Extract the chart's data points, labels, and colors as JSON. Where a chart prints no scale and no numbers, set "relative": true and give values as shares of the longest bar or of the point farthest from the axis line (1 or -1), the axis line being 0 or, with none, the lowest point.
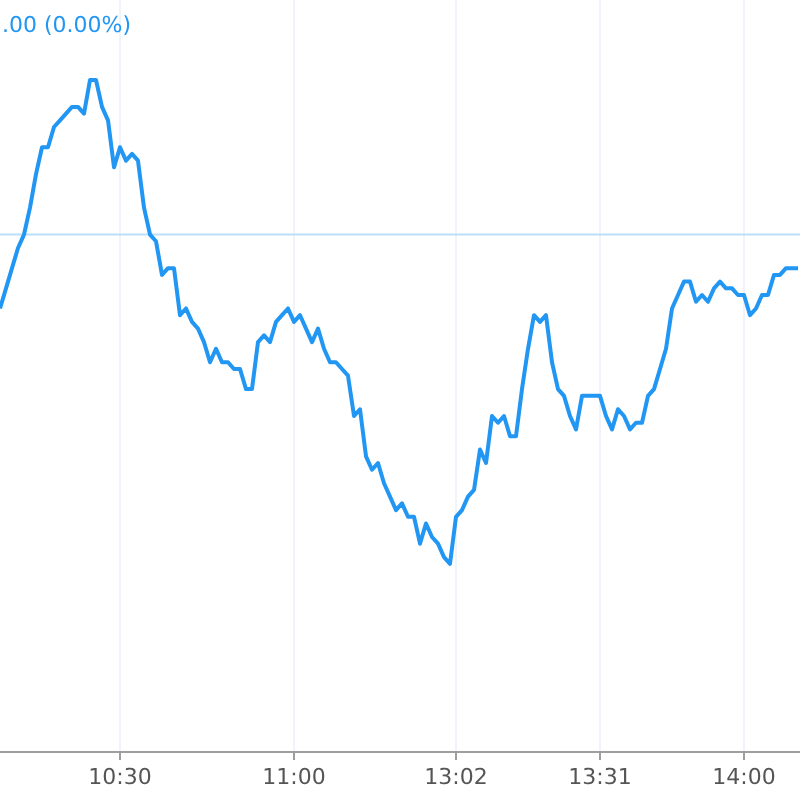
{
  "chart_data": {
    "type": "line",
    "relative": true,
    "grid": "x",
    "annotations": [
      ".00 (0.00%)"
    ],
    "ref_lines": [
      {
        "axis": "y",
        "value": 0.77,
        "color": "#bbdefb"
      }
    ],
    "categories": [
      null,
      null,
      null,
      null,
      null,
      null,
      null,
      null,
      null,
      null,
      null,
      null,
      null,
      null,
      null,
      null,
      null,
      null,
      null,
      null,
      "10:30",
      null,
      null,
      null,
      null,
      null,
      null,
      null,
      null,
      null,
      null,
      null,
      null,
      null,
      null,
      null,
      null,
      null,
      null,
      null,
      null,
      null,
      null,
      null,
      null,
      null,
      null,
      null,
      null,
      "11:00",
      null,
      null,
      null,
      null,
      null,
      null,
      null,
      null,
      null,
      null,
      null,
      null,
      null,
      null,
      null,
      null,
      null,
      null,
      null,
      null,
      null,
      null,
      null,
      null,
      null,
      null,
      "13:02",
      null,
      null,
      null,
      null,
      null,
      null,
      null,
      null,
      null,
      null,
      null,
      null,
      null,
      null,
      null,
      null,
      null,
      null,
      null,
      null,
      null,
      null,
      null,
      "13:31",
      null,
      null,
      null,
      null,
      null,
      null,
      null,
      null,
      null,
      null,
      null,
      null,
      null,
      null,
      null,
      null,
      null,
      null,
      null,
      null,
      null,
      null,
      null,
      "14:00",
      null,
      null,
      null,
      null,
      null,
      null,
      null,
      null,
      null
    ],
    "series": [
      {
        "color": "#2196f3",
        "values": [
          0.66,
          0.69,
          0.72,
          0.75,
          0.77,
          0.81,
          0.86,
          0.9,
          0.9,
          0.93,
          0.94,
          0.95,
          0.96,
          0.96,
          0.95,
          1,
          1,
          0.96,
          0.94,
          0.87,
          0.9,
          0.88,
          0.89,
          0.88,
          0.81,
          0.77,
          0.76,
          0.71,
          0.72,
          0.72,
          0.65,
          0.66,
          0.64,
          0.63,
          0.61,
          0.58,
          0.6,
          0.58,
          0.58,
          0.57,
          0.57,
          0.54,
          0.54,
          0.61,
          0.62,
          0.61,
          0.64,
          0.65,
          0.66,
          0.64,
          0.65,
          0.63,
          0.61,
          0.63,
          0.6,
          0.58,
          0.58,
          0.57,
          0.56,
          0.5,
          0.51,
          0.44,
          0.42,
          0.43,
          0.4,
          0.38,
          0.36,
          0.37,
          0.35,
          0.35,
          0.31,
          0.34,
          0.32,
          0.31,
          0.29,
          0.28,
          0.35,
          0.36,
          0.38,
          0.39,
          0.45,
          0.43,
          0.5,
          0.49,
          0.5,
          0.47,
          0.47,
          0.54,
          0.6,
          0.65,
          0.64,
          0.65,
          0.58,
          0.54,
          0.53,
          0.5,
          0.48,
          0.53,
          0.53,
          0.53,
          0.53,
          0.5,
          0.48,
          0.51,
          0.5,
          0.48,
          0.49,
          0.49,
          0.53,
          0.54,
          0.57,
          0.6,
          0.66,
          0.68,
          0.7,
          0.7,
          0.67,
          0.68,
          0.67,
          0.69,
          0.7,
          0.69,
          0.69,
          0.68,
          0.68,
          0.65,
          0.66,
          0.68,
          0.68,
          0.71,
          0.71,
          0.72,
          0.72,
          0.72
        ]
      }
    ]
  }
}
